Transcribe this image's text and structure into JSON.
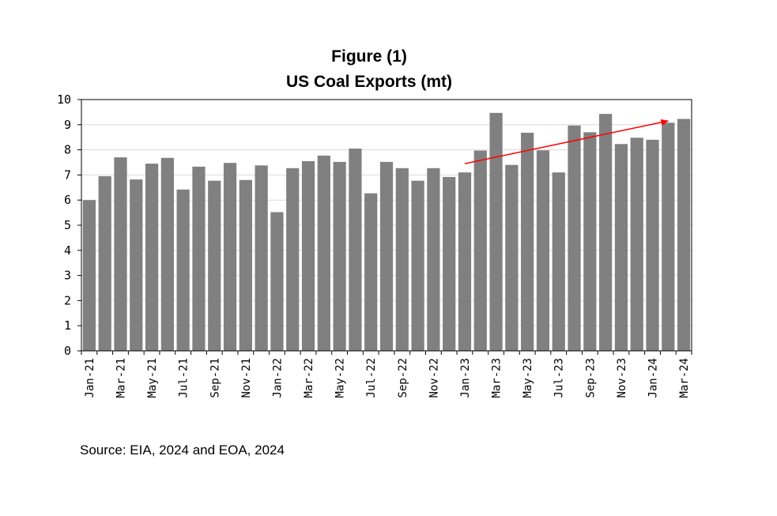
{
  "source_text": "Source: EIA, 2024 and EOA, 2024",
  "chart_data": {
    "type": "bar",
    "title": "Figure (1)",
    "subtitle": "US Coal Exports (mt)",
    "xlabel": "",
    "ylabel": "",
    "ylim": [
      0,
      10
    ],
    "yticks": [
      0,
      1,
      2,
      3,
      4,
      5,
      6,
      7,
      8,
      9,
      10
    ],
    "grid": "horizontal",
    "bar_color": "#808080",
    "trend_arrow_color": "#ff0000",
    "trend_arrow": {
      "from": {
        "category": "Jan-23",
        "value": 7.45
      },
      "to": {
        "category": "Feb-24",
        "value": 9.15
      }
    },
    "categories": [
      "Jan-21",
      "Feb-21",
      "Mar-21",
      "Apr-21",
      "May-21",
      "Jun-21",
      "Jul-21",
      "Aug-21",
      "Sep-21",
      "Oct-21",
      "Nov-21",
      "Dec-21",
      "Jan-22",
      "Feb-22",
      "Mar-22",
      "Apr-22",
      "May-22",
      "Jun-22",
      "Jul-22",
      "Aug-22",
      "Sep-22",
      "Oct-22",
      "Nov-22",
      "Dec-22",
      "Jan-23",
      "Feb-23",
      "Mar-23",
      "Apr-23",
      "May-23",
      "Jun-23",
      "Jul-23",
      "Aug-23",
      "Sep-23",
      "Oct-23",
      "Nov-23",
      "Dec-23",
      "Jan-24",
      "Feb-24",
      "Mar-24"
    ],
    "tick_labels": [
      "Jan-21",
      "Mar-21",
      "May-21",
      "Jul-21",
      "Sep-21",
      "Nov-21",
      "Jan-22",
      "Mar-22",
      "May-22",
      "Jul-22",
      "Sep-22",
      "Nov-22",
      "Jan-23",
      "Mar-23",
      "May-23",
      "Jul-23",
      "Sep-23",
      "Nov-23",
      "Jan-24",
      "Mar-24"
    ],
    "values": [
      6.0,
      6.95,
      7.7,
      6.82,
      7.45,
      7.68,
      6.42,
      7.33,
      6.77,
      7.48,
      6.8,
      7.38,
      5.52,
      7.27,
      7.55,
      7.77,
      7.52,
      8.05,
      6.27,
      7.52,
      7.27,
      6.77,
      7.27,
      6.92,
      7.1,
      7.97,
      9.47,
      7.4,
      8.68,
      7.98,
      7.1,
      8.97,
      8.7,
      9.43,
      8.23,
      8.48,
      8.4,
      9.08,
      9.23
    ]
  }
}
